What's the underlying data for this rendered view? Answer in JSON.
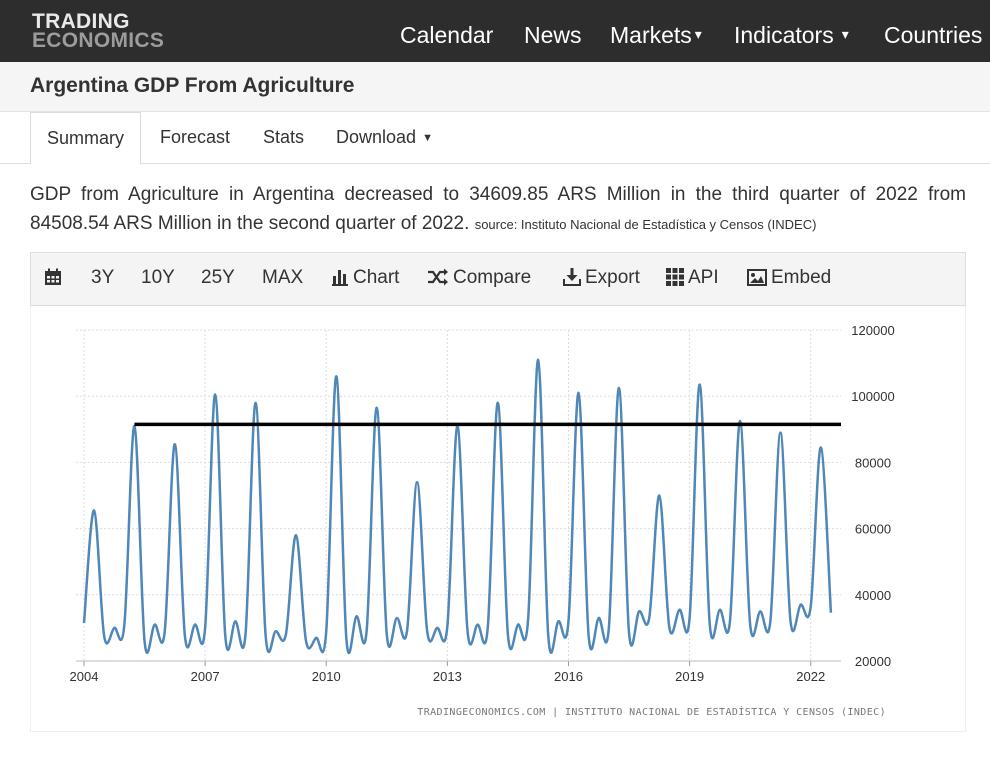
{
  "nav": {
    "logo_line1": "TRADING",
    "logo_line2": "ECONOMICS",
    "items": [
      {
        "label": "Calendar"
      },
      {
        "label": "News"
      },
      {
        "label": "Markets"
      },
      {
        "label": "Indicators"
      },
      {
        "label": "Countries"
      }
    ]
  },
  "page": {
    "title": "Argentina GDP From Agriculture"
  },
  "tabs": [
    {
      "label": "Summary",
      "active": true
    },
    {
      "label": "Forecast"
    },
    {
      "label": "Stats"
    },
    {
      "label": "Download"
    }
  ],
  "description": {
    "text": "GDP from Agriculture in Argentina decreased to 34609.85 ARS Million in the third quarter of 2022 from 84508.54 ARS Million in the second quarter of 2022.",
    "source": "source: Instituto Nacional de Estadística y Censos (INDEC)"
  },
  "toolbar": {
    "calendar_icon": "calendar-icon",
    "range_3y": "3Y",
    "range_10y": "10Y",
    "range_25y": "25Y",
    "range_max": "MAX",
    "chart": "Chart",
    "compare": "Compare",
    "export": "Export",
    "api": "API",
    "embed": "Embed"
  },
  "chart_data": {
    "type": "line",
    "title": "",
    "xlabel": "",
    "ylabel": "",
    "credit": "TRADINGECONOMICS.COM | INSTITUTO NACIONAL DE ESTADÍSTICA Y CENSOS (INDEC)",
    "xlim": [
      2004.0,
      2022.75
    ],
    "ylim": [
      20000,
      120000
    ],
    "x_ticks": [
      "2004",
      "2007",
      "2010",
      "2013",
      "2016",
      "2019",
      "2022"
    ],
    "y_ticks": [
      "120000",
      "100000",
      "80000",
      "60000",
      "40000",
      "20000"
    ],
    "y_axis_side": "right",
    "grid": true,
    "line_color": "#4f87b8",
    "series": [
      {
        "x": [
          2004.0,
          2004.25,
          2004.5,
          2004.75,
          2005.0,
          2005.25,
          2005.5,
          2005.75,
          2006.0,
          2006.25,
          2006.5,
          2006.75,
          2007.0,
          2007.25,
          2007.5,
          2007.75,
          2008.0,
          2008.25,
          2008.5,
          2008.75,
          2009.0,
          2009.25,
          2009.5,
          2009.75,
          2010.0,
          2010.25,
          2010.5,
          2010.75,
          2011.0,
          2011.25,
          2011.5,
          2011.75,
          2012.0,
          2012.25,
          2012.5,
          2012.75,
          2013.0,
          2013.25,
          2013.5,
          2013.75,
          2014.0,
          2014.25,
          2014.5,
          2014.75,
          2015.0,
          2015.25,
          2015.5,
          2015.75,
          2016.0,
          2016.25,
          2016.5,
          2016.75,
          2017.0,
          2017.25,
          2017.5,
          2017.75,
          2018.0,
          2018.25,
          2018.5,
          2018.75,
          2019.0,
          2019.25,
          2019.5,
          2019.75,
          2020.0,
          2020.25,
          2020.5,
          2020.75,
          2021.0,
          2021.25,
          2021.5,
          2021.75,
          2022.0,
          2022.25,
          2022.5
        ],
        "y": [
          31500,
          65500,
          27500,
          30000,
          31000,
          91000,
          26000,
          31000,
          29000,
          85500,
          27500,
          31000,
          30000,
          100500,
          27500,
          32000,
          28000,
          98000,
          27500,
          29000,
          28000,
          58000,
          26000,
          27000,
          29000,
          106000,
          26500,
          33500,
          29000,
          96500,
          28000,
          33000,
          29000,
          74000,
          29000,
          30000,
          30500,
          91000,
          29000,
          31000,
          30000,
          98000,
          28000,
          31000,
          32500,
          111000,
          27500,
          32000,
          32000,
          101000,
          27500,
          33000,
          30000,
          102500,
          28500,
          35000,
          33000,
          70000,
          30000,
          35500,
          33000,
          103500,
          31000,
          35500,
          32000,
          92500,
          31000,
          35000,
          32000,
          89000,
          32000,
          37000,
          36500,
          84508.54,
          34609.85
        ]
      }
    ],
    "reference_line": {
      "y": 91500,
      "x_range": [
        2005.25,
        2022.75
      ],
      "color": "#000000"
    }
  }
}
